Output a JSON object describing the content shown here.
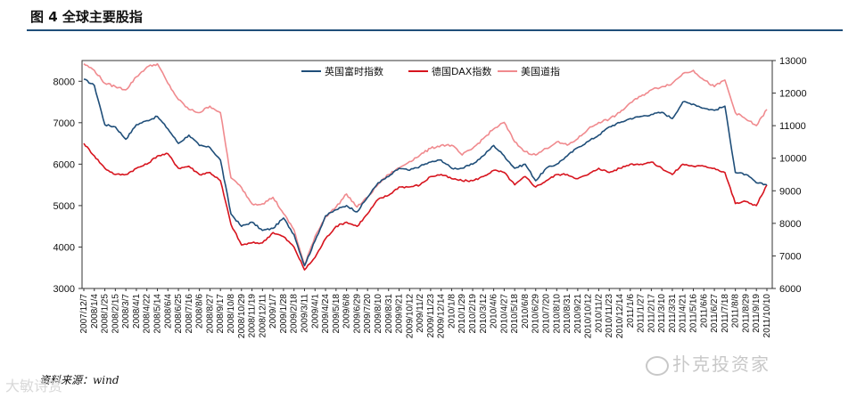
{
  "figure": {
    "title": "图 4  全球主要股指",
    "source": "资料来源：wind",
    "watermark_left": "大敏诗赏",
    "watermark_right": "扑克投资家"
  },
  "colors": {
    "ftse": "#1f4e79",
    "dax": "#d7141e",
    "dow": "#f08a8e",
    "axis": "#333333"
  },
  "chart_data": {
    "type": "line",
    "title": "",
    "ylim_left": [
      3000,
      8500
    ],
    "ylim_right": [
      6000,
      13000
    ],
    "left_ticks": [
      3000,
      4000,
      5000,
      6000,
      7000,
      8000
    ],
    "right_ticks": [
      6000,
      7000,
      8000,
      9000,
      10000,
      11000,
      12000,
      13000
    ],
    "legend_position": "top",
    "x_labels": [
      "2007/12/7",
      "2008/1/4",
      "2008/1/25",
      "2008/2/15",
      "2008/3/7",
      "2008/4/1",
      "2008/4/22",
      "2008/5/14",
      "2008/6/4",
      "2008/6/25",
      "2008/7/16",
      "2008/8/6",
      "2008/8/27",
      "2008/9/17",
      "2008/10/8",
      "2008/10/29",
      "2008/11/19",
      "2008/12/11",
      "2009/1/7",
      "2009/1/28",
      "2009/2/18",
      "2009/3/11",
      "2009/4/1",
      "2009/4/24",
      "2009/5/18",
      "2009/6/8",
      "2009/6/29",
      "2009/7/20",
      "2009/8/10",
      "2009/8/31",
      "2009/9/21",
      "2009/10/12",
      "2009/11/2",
      "2009/11/23",
      "2009/12/14",
      "2010/1/8",
      "2010/1/29",
      "2010/2/19",
      "2010/3/12",
      "2010/4/6",
      "2010/4/27",
      "2010/5/18",
      "2010/6/8",
      "2010/6/29",
      "2010/7/20",
      "2010/8/10",
      "2010/8/31",
      "2010/9/21",
      "2010/10/12",
      "2010/11/2",
      "2010/11/23",
      "2010/12/14",
      "2011/1/6",
      "2011/1/27",
      "2011/2/17",
      "2011/3/10",
      "2011/3/31",
      "2011/4/21",
      "2011/5/16",
      "2011/6/6",
      "2011/6/27",
      "2011/7/18",
      "2011/8/8",
      "2011/8/29",
      "2011/9/19",
      "2011/10/10"
    ],
    "series": [
      {
        "name": "英国富时指数",
        "axis": "left",
        "values": [
          8050,
          7900,
          6950,
          6900,
          6600,
          6950,
          7050,
          7150,
          6850,
          6500,
          6700,
          6450,
          6400,
          6100,
          4800,
          4500,
          4600,
          4400,
          4450,
          4700,
          4300,
          3550,
          4150,
          4750,
          4900,
          5000,
          4850,
          5200,
          5550,
          5700,
          5900,
          5850,
          5950,
          6050,
          6100,
          5900,
          5900,
          6000,
          6200,
          6450,
          6200,
          5900,
          6000,
          5600,
          5900,
          6000,
          6200,
          6400,
          6550,
          6700,
          6900,
          7000,
          7100,
          7150,
          7200,
          7250,
          7100,
          7500,
          7450,
          7350,
          7300,
          7400,
          5800,
          5750,
          5550,
          5500
        ]
      },
      {
        "name": "德国DAX指数",
        "axis": "left",
        "values": [
          6500,
          6200,
          5900,
          5750,
          5750,
          5900,
          6000,
          6200,
          6250,
          5900,
          5950,
          5750,
          5800,
          5600,
          4550,
          4050,
          4100,
          4100,
          4350,
          4250,
          4000,
          3450,
          3750,
          4200,
          4500,
          4600,
          4500,
          4800,
          5150,
          5250,
          5450,
          5450,
          5500,
          5700,
          5750,
          5650,
          5600,
          5600,
          5700,
          5850,
          5800,
          5500,
          5700,
          5450,
          5600,
          5750,
          5750,
          5650,
          5750,
          5900,
          5800,
          5900,
          6000,
          6000,
          6050,
          5900,
          5750,
          6000,
          5950,
          5950,
          5900,
          5800,
          5050,
          5100,
          5000,
          5500
        ]
      },
      {
        "name": "美国道指",
        "axis": "right",
        "values": [
          12900,
          12700,
          12300,
          12200,
          12100,
          12500,
          12800,
          12900,
          12300,
          11800,
          11500,
          11400,
          11600,
          11400,
          9400,
          9100,
          8600,
          8600,
          8800,
          8300,
          7800,
          6700,
          7600,
          8200,
          8500,
          8900,
          8500,
          8800,
          9200,
          9500,
          9700,
          9900,
          10100,
          10300,
          10400,
          10400,
          10100,
          10300,
          10600,
          10900,
          11100,
          10500,
          10200,
          10100,
          10300,
          10500,
          10400,
          10600,
          10900,
          11100,
          11200,
          11400,
          11700,
          11900,
          12100,
          12200,
          12300,
          12600,
          12700,
          12400,
          12200,
          12400,
          11400,
          11200,
          11000,
          11500
        ]
      }
    ]
  }
}
